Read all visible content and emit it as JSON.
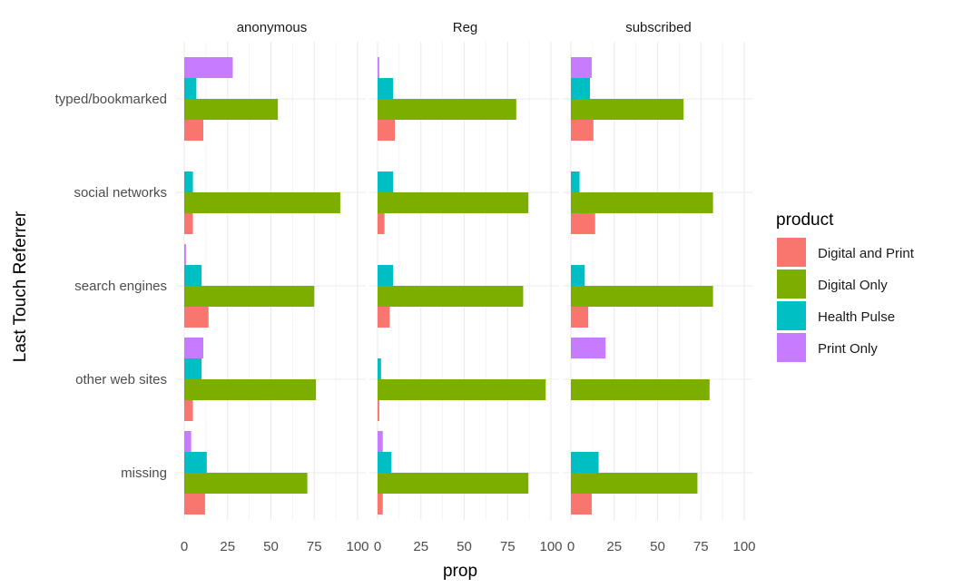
{
  "chart_data": {
    "type": "bar",
    "orientation": "horizontal",
    "facets": [
      "anonymous",
      "Reg",
      "subscribed"
    ],
    "categories": [
      "typed/bookmarked",
      "social networks",
      "search engines",
      "other web sites",
      "missing"
    ],
    "xlabel": "prop",
    "ylabel": "Last Touch Referrer",
    "xlim": [
      0,
      100
    ],
    "x_ticks": [
      "0",
      "25",
      "50",
      "75",
      "100"
    ],
    "grid": true,
    "legend": {
      "title": "product",
      "placement": "right",
      "entries": [
        "Digital and Print",
        "Digital Only",
        "Health Pulse",
        "Print Only"
      ]
    },
    "colors": {
      "Digital and Print": "#F8766D",
      "Digital Only": "#7CAE00",
      "Health Pulse": "#00BFC4",
      "Print Only": "#C77CFF"
    },
    "series": [
      {
        "facet": "anonymous",
        "bars": {
          "typed/bookmarked": {
            "Digital and Print": 11,
            "Digital Only": 54,
            "Health Pulse": 7,
            "Print Only": 28
          },
          "social networks": {
            "Digital and Print": 5,
            "Digital Only": 90,
            "Health Pulse": 5
          },
          "search engines": {
            "Digital and Print": 14,
            "Digital Only": 75,
            "Health Pulse": 10,
            "Print Only": 1
          },
          "other web sites": {
            "Digital and Print": 5,
            "Digital Only": 76,
            "Health Pulse": 10,
            "Print Only": 11
          },
          "missing": {
            "Digital and Print": 12,
            "Digital Only": 71,
            "Health Pulse": 13,
            "Print Only": 4
          }
        }
      },
      {
        "facet": "Reg",
        "bars": {
          "typed/bookmarked": {
            "Digital and Print": 10,
            "Digital Only": 80,
            "Health Pulse": 9,
            "Print Only": 1
          },
          "social networks": {
            "Digital and Print": 4,
            "Digital Only": 87,
            "Health Pulse": 9
          },
          "search engines": {
            "Digital and Print": 7,
            "Digital Only": 84,
            "Health Pulse": 9
          },
          "other web sites": {
            "Digital and Print": 1,
            "Digital Only": 97,
            "Health Pulse": 2
          },
          "missing": {
            "Digital and Print": 3,
            "Digital Only": 87,
            "Health Pulse": 8,
            "Print Only": 3
          }
        }
      },
      {
        "facet": "subscribed",
        "bars": {
          "typed/bookmarked": {
            "Digital and Print": 13,
            "Digital Only": 65,
            "Health Pulse": 11,
            "Print Only": 12
          },
          "social networks": {
            "Digital and Print": 14,
            "Digital Only": 82,
            "Health Pulse": 5
          },
          "search engines": {
            "Digital and Print": 10,
            "Digital Only": 82,
            "Health Pulse": 8
          },
          "other web sites": {
            "Digital Only": 80,
            "Print Only": 20
          },
          "missing": {
            "Digital and Print": 12,
            "Digital Only": 73,
            "Health Pulse": 16
          }
        }
      }
    ]
  }
}
